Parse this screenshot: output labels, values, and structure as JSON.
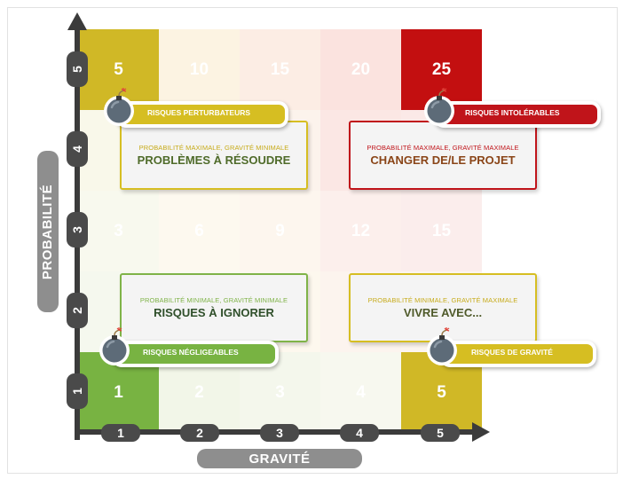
{
  "y_axis": {
    "label": "PROBABILITÉ",
    "ticks": [
      "1",
      "2",
      "3",
      "4",
      "5"
    ]
  },
  "x_axis": {
    "label": "GRAVITÉ",
    "ticks": [
      "1",
      "2",
      "3",
      "4",
      "5"
    ]
  },
  "grid": {
    "rows": [
      {
        "probability": 5,
        "values": [
          "5",
          "10",
          "15",
          "20",
          "25"
        ]
      },
      {
        "probability": 4,
        "values": [
          "",
          "",
          "",
          "",
          ""
        ]
      },
      {
        "probability": 3,
        "values": [
          "3",
          "6",
          "9",
          "12",
          "15"
        ]
      },
      {
        "probability": 2,
        "values": [
          "",
          "",
          "",
          "",
          ""
        ]
      },
      {
        "probability": 1,
        "values": [
          "1",
          "2",
          "3",
          "4",
          "5"
        ]
      }
    ],
    "colors": [
      [
        "#d0b826",
        "#fcf3e2",
        "#fcede4",
        "#fbe3df",
        "#c30f10"
      ],
      [
        "#f9f8ea",
        "#fcf6ec",
        "#fcf3ec",
        "#fbe7e4",
        "#fbe9e7"
      ],
      [
        "#f8f9ee",
        "#fdf9ef",
        "#fdf6ee",
        "#fcefec",
        "#fbedec"
      ],
      [
        "#f5f8ee",
        "#f9faf0",
        "#fdf8ee",
        "#fcf4ee",
        "#fcf5ef"
      ],
      [
        "#78b342",
        "#f2f6e8",
        "#f4f7ec",
        "#f7f8ef",
        "#d0b826"
      ]
    ]
  },
  "quadrants": [
    {
      "sub": "PROBABILITÉ MAXIMALE, GRAVITÉ MINIMALE",
      "title": "PROBLÈMES À RÉSOUDRE",
      "accent": "#d6be22",
      "sub_color": "#c7ab1a",
      "title_color": "#4f6b2a"
    },
    {
      "sub": "PROBABILITÉ MAXIMALE, GRAVITÉ MAXIMALE",
      "title": "CHANGER DE/LE PROJET",
      "accent": "#c0141a",
      "sub_color": "#c0141a",
      "title_color": "#8a4518"
    },
    {
      "sub": "PROBABILITÉ MINIMALE, GRAVITÉ MINIMALE",
      "title": "RISQUES À IGNORER",
      "accent": "#7fb348",
      "sub_color": "#7fb348",
      "title_color": "#2f4f2a"
    },
    {
      "sub": "PROBABILITÉ MINIMALE, GRAVITÉ MAXIMALE",
      "title": "VIVRE AVEC...",
      "accent": "#d6be22",
      "sub_color": "#c7ab1a",
      "title_color": "#4f5a2a"
    }
  ],
  "risk_tags": [
    {
      "label": "RISQUES PERTURBATEURS",
      "color": "#d6be22"
    },
    {
      "label": "RISQUES INTOLÉRABLES",
      "color": "#c0141a"
    },
    {
      "label": "RISQUES NÉGLIGEABLES",
      "color": "#78b342"
    },
    {
      "label": "RISQUES DE GRAVITÉ",
      "color": "#d6be22"
    }
  ],
  "icons": {
    "bomb": "bomb-icon"
  }
}
